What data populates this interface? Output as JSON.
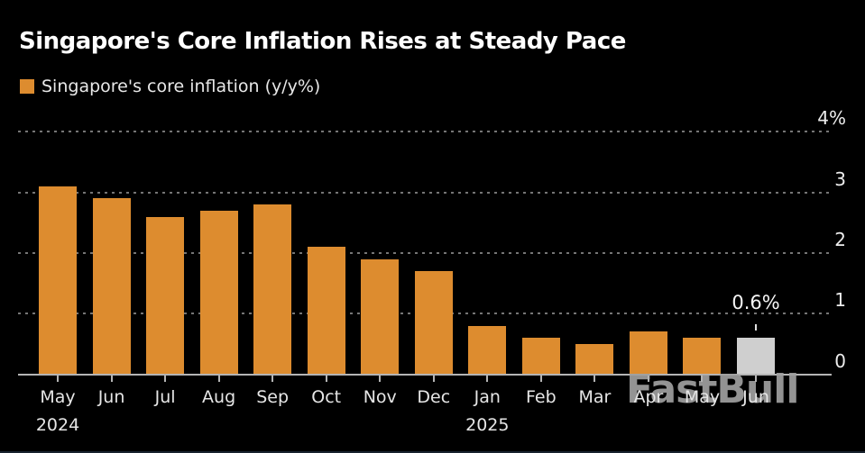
{
  "header": {
    "title": "Singapore's Core Inflation Rises at Steady Pace"
  },
  "legend": {
    "label": "Singapore's core inflation (y/y%)"
  },
  "watermark": "FastBull",
  "colors": {
    "background": "#000000",
    "bar": "#dd8c2f",
    "highlight_bar": "#cfcfcf",
    "title_text": "#ffffff",
    "axis_text": "#e6e6e6",
    "gridline": "#757575",
    "axis_line": "#b4b4b4",
    "watermark": "#a0a0a0"
  },
  "chart_data": {
    "type": "bar",
    "title": "Singapore's Core Inflation Rises at Steady Pace",
    "series_name": "Singapore's core inflation (y/y%)",
    "categories": [
      "May",
      "Jun",
      "Jul",
      "Aug",
      "Sep",
      "Oct",
      "Nov",
      "Dec",
      "Jan",
      "Feb",
      "Mar",
      "Apr",
      "May",
      "Jun"
    ],
    "values": [
      3.1,
      2.9,
      2.6,
      2.7,
      2.8,
      2.1,
      1.9,
      1.7,
      0.8,
      0.6,
      0.5,
      0.7,
      0.6,
      0.6
    ],
    "year_markers": [
      {
        "index": 0,
        "label": "2024"
      },
      {
        "index": 8,
        "label": "2025"
      }
    ],
    "ylim": [
      0,
      4
    ],
    "yticks": [
      {
        "value": 4,
        "label": "4%"
      },
      {
        "value": 3,
        "label": "3"
      },
      {
        "value": 2,
        "label": "2"
      },
      {
        "value": 1,
        "label": "1"
      },
      {
        "value": 0,
        "label": "0"
      }
    ],
    "highlight_index": 13,
    "annotation": {
      "index": 13,
      "label": "0.6%"
    },
    "grid": "horizontal-dashed",
    "legend_position": "top-left",
    "xlabel": "",
    "ylabel": ""
  }
}
